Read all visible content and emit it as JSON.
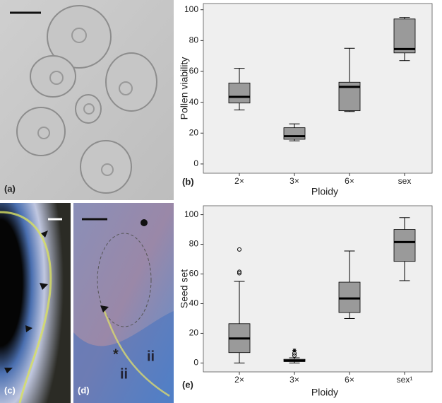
{
  "panels": {
    "a": {
      "label": "(a)"
    },
    "c": {
      "label": "(c)"
    },
    "d": {
      "label": "(d)",
      "annotations": [
        "*",
        "ii",
        "ii"
      ]
    }
  },
  "chart_data": [
    {
      "type": "box",
      "panel_label": "(b)",
      "ylabel": "Pollen viability",
      "xlabel": "Ploidy",
      "categories": [
        "2×",
        "3×",
        "6×",
        "sex"
      ],
      "boxes": [
        {
          "min": 35,
          "q1": 39.5,
          "median": 43.5,
          "q3": 52.5,
          "max": 62
        },
        {
          "min": 15,
          "q1": 16,
          "median": 18,
          "q3": 23.5,
          "max": 26
        },
        {
          "min": 34,
          "q1": 34.5,
          "median": 50,
          "q3": 53,
          "max": 75
        },
        {
          "min": 67,
          "q1": 72,
          "median": 74.5,
          "q3": 94,
          "max": 95
        }
      ],
      "color": "#9a9a9a",
      "ylim": [
        -6,
        104
      ],
      "yticks": [
        0,
        20,
        40,
        60,
        80,
        100
      ]
    },
    {
      "type": "box",
      "panel_label": "(e)",
      "ylabel": "Seed set",
      "xlabel": "Ploidy",
      "categories": [
        "2×",
        "3×",
        "6×",
        "sex¹"
      ],
      "boxes": [
        {
          "min": 0,
          "q1": 7,
          "median": 16.5,
          "q3": 26.5,
          "max": 55,
          "outliers": [
            60.5,
            61.5,
            76.5
          ]
        },
        {
          "min": 0,
          "q1": 1,
          "median": 1.5,
          "q3": 2.5,
          "max": 3.5,
          "outliers": [
            5,
            6.5
          ],
          "extremes": [
            8.5
          ]
        },
        {
          "min": 30,
          "q1": 34,
          "median": 43.5,
          "q3": 54.5,
          "max": 75.5
        },
        {
          "min": 55.5,
          "q1": 68.5,
          "median": 81.5,
          "q3": 90,
          "max": 98
        }
      ],
      "color": "#9a9a9a",
      "ylim": [
        -6,
        106
      ],
      "yticks": [
        0,
        20,
        40,
        60,
        80,
        100
      ]
    }
  ]
}
